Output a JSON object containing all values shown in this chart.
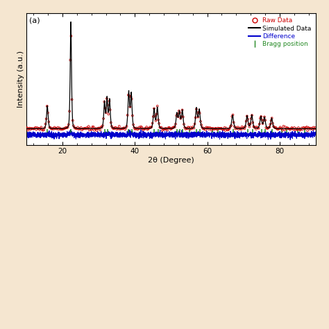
{
  "xlabel": "2θ (Degree)",
  "ylabel": "Intensity (a.u.)",
  "xlim": [
    10,
    90
  ],
  "background_color": "#ffffff",
  "panel_bg": "#f5e6d0",
  "raw_data_color": "#cc0000",
  "simulated_color": "#000000",
  "difference_color": "#0000cc",
  "bragg_color": "#228822",
  "legend_labels": [
    "Raw Data",
    "Simulated Data",
    "Difference",
    "Bragg position"
  ],
  "peak_positions_2theta": [
    15.8,
    22.3,
    31.6,
    32.3,
    33.0,
    38.3,
    39.0,
    45.3,
    46.2,
    51.6,
    52.3,
    53.1,
    57.0,
    57.8,
    67.0,
    71.0,
    72.3,
    74.8,
    75.8,
    77.8
  ],
  "peak_heights": [
    0.3,
    1.4,
    0.35,
    0.4,
    0.38,
    0.48,
    0.46,
    0.26,
    0.28,
    0.2,
    0.22,
    0.24,
    0.27,
    0.25,
    0.18,
    0.17,
    0.18,
    0.16,
    0.15,
    0.14
  ],
  "peak_widths_g": [
    0.3,
    0.25,
    0.28,
    0.28,
    0.28,
    0.3,
    0.3,
    0.32,
    0.32,
    0.32,
    0.32,
    0.32,
    0.33,
    0.33,
    0.35,
    0.35,
    0.35,
    0.35,
    0.35,
    0.35
  ],
  "peak_widths_l": [
    0.18,
    0.15,
    0.17,
    0.17,
    0.17,
    0.18,
    0.18,
    0.2,
    0.2,
    0.2,
    0.2,
    0.2,
    0.21,
    0.21,
    0.22,
    0.22,
    0.22,
    0.22,
    0.22,
    0.22
  ],
  "bragg_positions": [
    15.8,
    22.3,
    31.6,
    32.4,
    38.3,
    39.1,
    45.4,
    46.4,
    51.7,
    52.4,
    53.2,
    55.0,
    57.1,
    57.9,
    61.5,
    63.0,
    67.2,
    71.2,
    72.5,
    75.0,
    76.0,
    78.0,
    80.5,
    82.0,
    85.0,
    87.0
  ],
  "diff_baseline": 0.08,
  "diff_noise": 0.018,
  "figsize": [
    4.74,
    4.74
  ],
  "dpi": 100
}
